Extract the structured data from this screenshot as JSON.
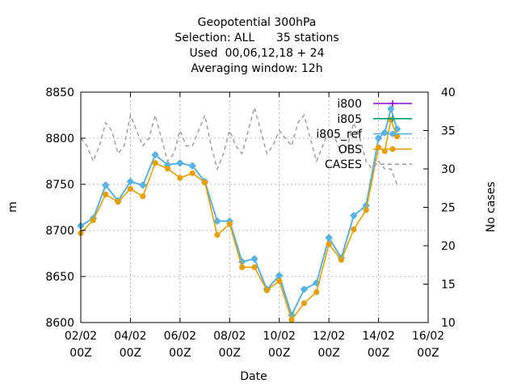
{
  "chart_data": {
    "type": "line",
    "title_lines": [
      "Geopotential 300hPa",
      "Selection: ALL      35 stations",
      "Used  00,06,12,18 + 24",
      "Averaging window: 12h"
    ],
    "xlabel": "Date",
    "ylabel": "m",
    "y2label": "No cases",
    "x_unit": "days since 02/02 00Z",
    "xlim": [
      0,
      14
    ],
    "ylim": [
      8600,
      8850
    ],
    "y2lim": [
      10,
      40
    ],
    "x_ticks": [
      {
        "x": 0,
        "l1": "02/02",
        "l2": "00Z"
      },
      {
        "x": 2,
        "l1": "04/02",
        "l2": "00Z"
      },
      {
        "x": 4,
        "l1": "06/02",
        "l2": "00Z"
      },
      {
        "x": 6,
        "l1": "08/02",
        "l2": "00Z"
      },
      {
        "x": 8,
        "l1": "10/02",
        "l2": "00Z"
      },
      {
        "x": 10,
        "l1": "12/02",
        "l2": "00Z"
      },
      {
        "x": 12,
        "l1": "14/02",
        "l2": "00Z"
      },
      {
        "x": 14,
        "l1": "16/02",
        "l2": "00Z"
      }
    ],
    "y_ticks": [
      8600,
      8650,
      8700,
      8750,
      8800,
      8850
    ],
    "y2_ticks": [
      10,
      15,
      20,
      25,
      30,
      35,
      40
    ],
    "grid": true,
    "legend_position": "top-right",
    "x": [
      0,
      0.5,
      1,
      1.5,
      2,
      2.5,
      3,
      3.5,
      4,
      4.5,
      5,
      5.5,
      6,
      6.5,
      7,
      7.5,
      8,
      8.5,
      9,
      9.5,
      10,
      10.5,
      11,
      11.5,
      12,
      12.25,
      12.5,
      12.75
    ],
    "series": [
      {
        "name": "i800",
        "color": "#9400d3",
        "marker": "plus",
        "values": [
          8705,
          8713,
          8749,
          8732,
          8753,
          8749,
          8782,
          8771,
          8773,
          8770,
          8753,
          8710,
          8710,
          8666,
          8669,
          8636,
          8651,
          8608,
          8636,
          8643,
          8692,
          8670,
          8716,
          8727,
          8800,
          8806,
          8832,
          8810
        ]
      },
      {
        "name": "i805",
        "color": "#009e73",
        "marker": "plus",
        "values": [
          8705,
          8713,
          8749,
          8732,
          8753,
          8749,
          8782,
          8771,
          8773,
          8770,
          8753,
          8710,
          8710,
          8666,
          8669,
          8636,
          8651,
          8608,
          8636,
          8643,
          8692,
          8670,
          8716,
          8727,
          8800,
          8806,
          8832,
          8810
        ]
      },
      {
        "name": "i805_ref",
        "color": "#56b4e9",
        "marker": "circle",
        "values": [
          8705,
          8713,
          8749,
          8732,
          8753,
          8749,
          8782,
          8771,
          8773,
          8770,
          8753,
          8710,
          8710,
          8666,
          8669,
          8636,
          8651,
          8608,
          8636,
          8643,
          8692,
          8670,
          8716,
          8727,
          8800,
          8806,
          8832,
          8810
        ]
      },
      {
        "name": "OBS",
        "color": "#e69f00",
        "marker": "circle",
        "values": [
          8697,
          8711,
          8739,
          8731,
          8745,
          8737,
          8773,
          8767,
          8757,
          8762,
          8752,
          8695,
          8707,
          8660,
          8660,
          8635,
          8645,
          8603,
          8621,
          8633,
          8685,
          8668,
          8701,
          8722,
          8790,
          8786,
          8820,
          8802
        ]
      },
      {
        "name": "CASES",
        "color": "#a0a0a0",
        "marker": "none",
        "axis": "y2",
        "dash": true,
        "x": [
          0,
          0.25,
          0.5,
          0.75,
          1,
          1.25,
          1.5,
          1.75,
          2,
          2.25,
          2.5,
          2.75,
          3,
          3.25,
          3.5,
          3.75,
          4,
          4.25,
          4.5,
          4.75,
          5,
          5.25,
          5.5,
          5.75,
          6,
          6.25,
          6.5,
          6.75,
          7,
          7.25,
          7.5,
          7.75,
          8,
          8.25,
          8.5,
          8.75,
          9,
          9.25,
          9.5,
          9.75,
          10,
          10.25,
          10.5,
          10.75,
          11,
          11.25,
          11.5,
          11.75,
          12,
          12.25,
          12.5,
          12.75
        ],
        "values": [
          34,
          33,
          31,
          33,
          36,
          35,
          32,
          33,
          37,
          35,
          33,
          34,
          37,
          34,
          31,
          32,
          35,
          33,
          33,
          35,
          37,
          33,
          30,
          32,
          35,
          33,
          32,
          35,
          38,
          35,
          32,
          33,
          35,
          34,
          33,
          36,
          37,
          34,
          31,
          33,
          35,
          34,
          32,
          33,
          36,
          34,
          31,
          30,
          31,
          30,
          30,
          28
        ]
      }
    ]
  }
}
